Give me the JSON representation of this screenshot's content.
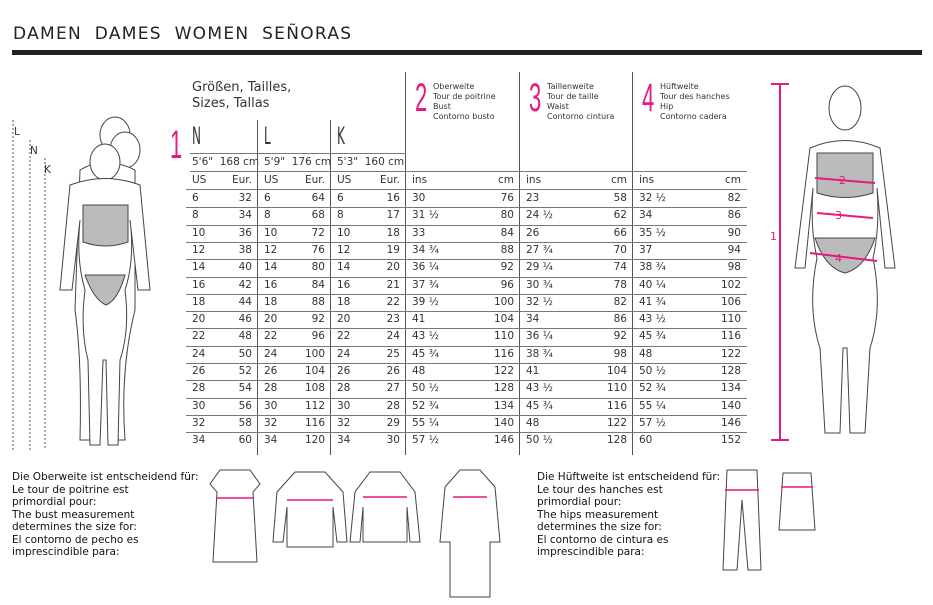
{
  "title": "DAMEN   DAMES   WOMEN   SEÑORAS",
  "sizes_heading": [
    "Größen, Tailles,",
    "Sizes, Tallas"
  ],
  "accent_color": "#e6197f",
  "section_number": "1",
  "groups": [
    {
      "letter": "N",
      "height": "5'6\"  168 cm",
      "col_a": "US",
      "col_b": "Eur."
    },
    {
      "letter": "L",
      "height": "5'9\"  176 cm",
      "col_a": "US",
      "col_b": "Eur."
    },
    {
      "letter": "K",
      "height": "5'3\"  160 cm",
      "col_a": "US",
      "col_b": "Eur."
    }
  ],
  "measurements": [
    {
      "number": "2",
      "labels": [
        "Oberweite",
        "Tour de poitrine",
        "Bust",
        "Contorno busto"
      ],
      "col_a": "ins",
      "col_b": "cm"
    },
    {
      "number": "3",
      "labels": [
        "Taillenweite",
        "Tour de taille",
        "Waist",
        "Contorno cintura"
      ],
      "col_a": "ins",
      "col_b": "cm"
    },
    {
      "number": "4",
      "labels": [
        "Hüftweite",
        "Tour des hanches",
        "Hip",
        "Contorno cadera"
      ],
      "col_a": "ins",
      "col_b": "cm"
    }
  ],
  "rows": [
    [
      "6",
      "32",
      "6",
      "64",
      "6",
      "16",
      "30",
      "76",
      "23",
      "58",
      "32 ½",
      "82"
    ],
    [
      "8",
      "34",
      "8",
      "68",
      "8",
      "17",
      "31 ½",
      "80",
      "24 ½",
      "62",
      "34",
      "86"
    ],
    [
      "10",
      "36",
      "10",
      "72",
      "10",
      "18",
      "33",
      "84",
      "26",
      "66",
      "35 ½",
      "90"
    ],
    [
      "12",
      "38",
      "12",
      "76",
      "12",
      "19",
      "34 ¾",
      "88",
      "27 ¾",
      "70",
      "37",
      "94"
    ],
    [
      "14",
      "40",
      "14",
      "80",
      "14",
      "20",
      "36 ¼",
      "92",
      "29 ¼",
      "74",
      "38 ¾",
      "98"
    ],
    [
      "16",
      "42",
      "16",
      "84",
      "16",
      "21",
      "37 ¾",
      "96",
      "30 ¾",
      "78",
      "40 ¼",
      "102"
    ],
    [
      "18",
      "44",
      "18",
      "88",
      "18",
      "22",
      "39 ½",
      "100",
      "32 ½",
      "82",
      "41 ¾",
      "106"
    ],
    [
      "20",
      "46",
      "20",
      "92",
      "20",
      "23",
      "41",
      "104",
      "34",
      "86",
      "43 ½",
      "110"
    ],
    [
      "22",
      "48",
      "22",
      "96",
      "22",
      "24",
      "43 ½",
      "110",
      "36 ¼",
      "92",
      "45 ¾",
      "116"
    ],
    [
      "24",
      "50",
      "24",
      "100",
      "24",
      "25",
      "45 ¾",
      "116",
      "38 ¾",
      "98",
      "48",
      "122"
    ],
    [
      "26",
      "52",
      "26",
      "104",
      "26",
      "26",
      "48",
      "122",
      "41",
      "104",
      "50 ½",
      "128"
    ],
    [
      "28",
      "54",
      "28",
      "108",
      "28",
      "27",
      "50 ½",
      "128",
      "43 ½",
      "110",
      "52 ¾",
      "134"
    ],
    [
      "30",
      "56",
      "30",
      "112",
      "30",
      "28",
      "52 ¾",
      "134",
      "45 ¾",
      "116",
      "55 ¼",
      "140"
    ],
    [
      "32",
      "58",
      "32",
      "116",
      "32",
      "29",
      "55 ¼",
      "140",
      "48",
      "122",
      "57 ½",
      "146"
    ],
    [
      "34",
      "60",
      "34",
      "120",
      "34",
      "30",
      "57 ½",
      "146",
      "50 ½",
      "128",
      "60",
      "152"
    ]
  ],
  "left_figure_labels": [
    "L",
    "N",
    "K"
  ],
  "right_figure_labels": [
    "1",
    "2",
    "3",
    "4"
  ],
  "bust_note": [
    "Die Oberweite ist entscheidend für:",
    "Le tour de poitrine est",
    "primordial pour:",
    "The bust measurement",
    "determines the size for:",
    "El contorno de pecho es",
    "imprescindible para:"
  ],
  "hip_note": [
    "Die Hüftweite ist entscheidend für:",
    "Le tour des hanches est",
    "primordial pour:",
    "The hips measurement",
    "determines the size for:",
    "El contorno de cintura es",
    "imprescindible para:"
  ]
}
